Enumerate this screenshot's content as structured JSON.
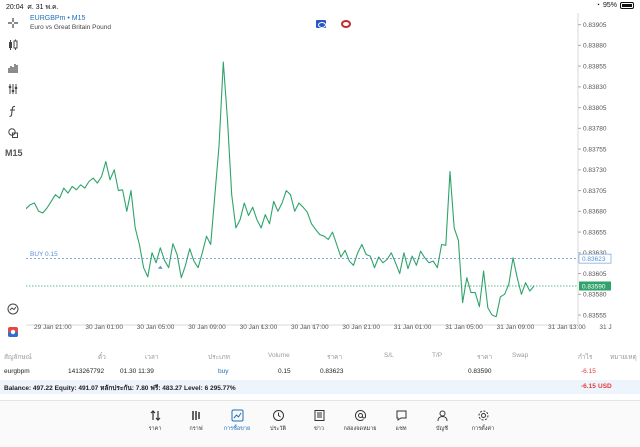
{
  "status": {
    "time": "20:04",
    "date": "ศ. 31 พ.ค.",
    "battery": "95%"
  },
  "chart": {
    "symbol": "EURGBPm • M15",
    "description": "Euro vs Great Britain Pound",
    "timeframe": "M15",
    "buy_line_label": "BUY 0.15",
    "y_ticks": [
      "0.83905",
      "0.83880",
      "0.83855",
      "0.83830",
      "0.83805",
      "0.83780",
      "0.83755",
      "0.83730",
      "0.83705",
      "0.83680",
      "0.83655",
      "0.83630",
      "0.83605",
      "0.83580",
      "0.83555"
    ],
    "open_price_tag": "0.83623",
    "current_price_tag": "0.83590",
    "x_ticks": [
      "29 Jan 21:00",
      "30 Jan 01:00",
      "30 Jan 05:00",
      "30 Jan 09:00",
      "30 Jan 13:00",
      "30 Jan 17:00",
      "30 Jan 21:00",
      "31 Jan 01:00",
      "31 Jan 05:00",
      "31 Jan 09:00",
      "31 Jan 13:00",
      "31 Jan 17:00"
    ],
    "colors": {
      "line": "#2fa36b",
      "buy_line": "#5a8fd8",
      "price_line": "#2fa36b",
      "accent": "#1f6fb8"
    }
  },
  "chart_data": {
    "type": "line",
    "title": "EURGBPm • M15",
    "xlabel": "",
    "ylabel": "",
    "ylim": [
      0.83543,
      0.83913
    ],
    "x_range": [
      "29 Jan 21:00",
      "31 Jan 17:00"
    ],
    "series": [
      {
        "name": "EURGBPm",
        "values": [
          0.83683,
          0.83688,
          0.8369,
          0.8368,
          0.83678,
          0.83684,
          0.83692,
          0.837,
          0.83696,
          0.83708,
          0.83702,
          0.8371,
          0.83706,
          0.83712,
          0.83708,
          0.83716,
          0.8372,
          0.83714,
          0.83722,
          0.8374,
          0.83718,
          0.8373,
          0.83705,
          0.83706,
          0.8368,
          0.83705,
          0.8366,
          0.8364,
          0.83612,
          0.83601,
          0.8363,
          0.83618,
          0.83636,
          0.83621,
          0.83612,
          0.83641,
          0.83628,
          0.836,
          0.83615,
          0.83635,
          0.8362,
          0.83612,
          0.8363,
          0.8365,
          0.8364,
          0.837,
          0.8376,
          0.8386,
          0.8379,
          0.837,
          0.8366,
          0.8367,
          0.8369,
          0.83675,
          0.83685,
          0.8367,
          0.8366,
          0.83676,
          0.83665,
          0.83692,
          0.8368,
          0.8369,
          0.83705,
          0.837,
          0.8368,
          0.8369,
          0.83685,
          0.83679,
          0.83665,
          0.83658,
          0.83652,
          0.8365,
          0.83646,
          0.83655,
          0.8364,
          0.83625,
          0.83633,
          0.8362,
          0.83615,
          0.8363,
          0.8364,
          0.83628,
          0.83626,
          0.83612,
          0.83625,
          0.83618,
          0.83622,
          0.8363,
          0.83618,
          0.83605,
          0.8363,
          0.83611,
          0.83626,
          0.83615,
          0.83632,
          0.83624,
          0.83618,
          0.8362,
          0.83612,
          0.8364,
          0.83639,
          0.83728,
          0.8366,
          0.83645,
          0.8357,
          0.836,
          0.83582,
          0.83582,
          0.83565,
          0.83608,
          0.83564,
          0.83555,
          0.83553,
          0.83577,
          0.8358,
          0.83592,
          0.83624,
          0.836,
          0.8358,
          0.83594,
          0.83584,
          0.8359
        ]
      }
    ]
  },
  "table": {
    "headers": [
      "สัญลักษณ์",
      "ตั๋ว",
      "เวลา",
      "ประเภท",
      "Volume",
      "ราคา",
      "S/L",
      "T/P",
      "ราคา",
      "Swap",
      "กำไร",
      "หมายเหตุ"
    ],
    "row": {
      "symbol": "eurgbpm",
      "ticket": "1413267792",
      "time": "01.30 11:39",
      "type": "buy",
      "volume": "0.15",
      "open_price": "0.83623",
      "price": "0.83590",
      "profit": "-6.15"
    }
  },
  "balance": {
    "text": "Balance: 497.22 Equity: 491.07 หลักประกัน: 7.80 ฟรี: 483.27 Level: 6 295.77%",
    "pl": "-6.15",
    "currency": "USD"
  },
  "nav": {
    "items": [
      {
        "label": "ราคา",
        "icon": "quotes-icon"
      },
      {
        "label": "กราฟ",
        "icon": "chart-icon"
      },
      {
        "label": "การซื้อขาย",
        "icon": "trade-icon"
      },
      {
        "label": "ประวัติ",
        "icon": "history-icon"
      },
      {
        "label": "ข่าว",
        "icon": "news-icon"
      },
      {
        "label": "กล่องจดหมาย",
        "icon": "mailbox-icon"
      },
      {
        "label": "แชท",
        "icon": "chat-icon"
      },
      {
        "label": "บัญชี",
        "icon": "accounts-icon"
      },
      {
        "label": "การตั้งค่า",
        "icon": "settings-icon"
      }
    ],
    "active_index": 2
  }
}
